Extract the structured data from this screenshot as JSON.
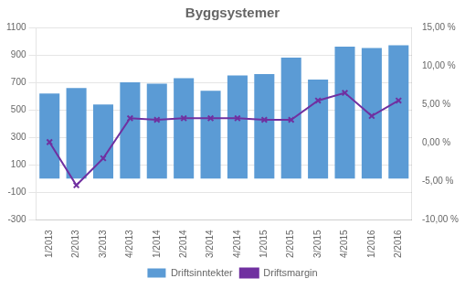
{
  "chart_data": {
    "type": "bar",
    "title": "Byggsystemer",
    "categories": [
      "1/2013",
      "2/2013",
      "3/2013",
      "4/2013",
      "1/2014",
      "2/2014",
      "3/2014",
      "4/2014",
      "1/2015",
      "2/2015",
      "3/2015",
      "4/2015",
      "1/2016",
      "2/2016"
    ],
    "series": [
      {
        "name": "Driftsinntekter",
        "type": "bar",
        "color": "#5B9BD5",
        "values": [
          620,
          660,
          540,
          700,
          690,
          730,
          640,
          750,
          760,
          880,
          720,
          960,
          950,
          970
        ]
      },
      {
        "name": "Driftsmargin",
        "type": "line",
        "axis": "y2",
        "color": "#7030A0",
        "marker": "x",
        "values": [
          0.1,
          -5.5,
          -2.0,
          3.2,
          3.0,
          3.2,
          3.2,
          3.2,
          3.0,
          3.0,
          5.5,
          6.5,
          3.5,
          5.5
        ]
      }
    ],
    "ylim": [
      -300,
      1100
    ],
    "yticks": [
      -300,
      -100,
      100,
      300,
      500,
      700,
      900,
      1100
    ],
    "y2lim": [
      -10.0,
      15.0
    ],
    "y2ticks": [
      {
        "value": -10.0,
        "label": "-10,00 %"
      },
      {
        "value": -5.0,
        "label": "-5,00 %"
      },
      {
        "value": 0.0,
        "label": "0,00 %"
      },
      {
        "value": 5.0,
        "label": "5,00 %"
      },
      {
        "value": 10.0,
        "label": "10,00 %"
      },
      {
        "value": 15.0,
        "label": "15,00 %"
      }
    ],
    "grid": true,
    "legend": "bottom"
  }
}
